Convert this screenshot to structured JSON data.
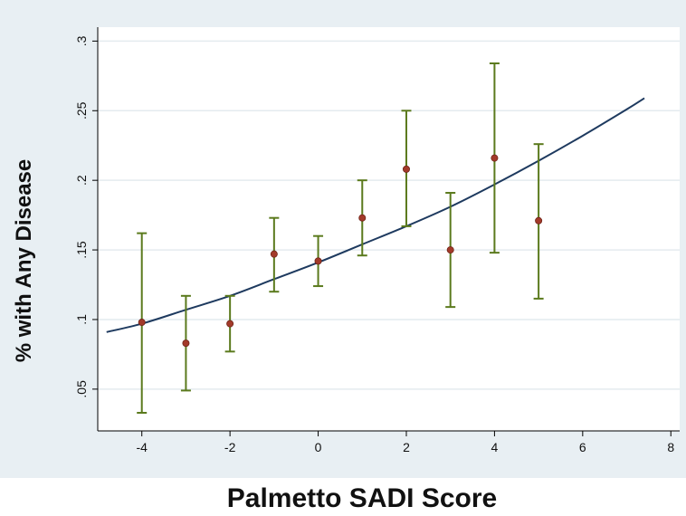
{
  "chart_data": {
    "type": "scatter",
    "xlabel": "Palmetto SADI Score",
    "ylabel": "% with Any Disease",
    "xlim": [
      -5,
      8.2
    ],
    "ylim": [
      0.02,
      0.31
    ],
    "x_ticks": [
      -4,
      -2,
      0,
      2,
      4,
      6,
      8
    ],
    "x_tick_labels": [
      "-4",
      "-2",
      "0",
      "2",
      "4",
      "6",
      "8"
    ],
    "y_ticks": [
      0.05,
      0.1,
      0.15,
      0.2,
      0.25,
      0.3
    ],
    "y_tick_labels": [
      ".05",
      ".1",
      ".15",
      ".2",
      ".25",
      ".3"
    ],
    "grid": true,
    "legend": "none",
    "colors": {
      "plot_background": "#ffffff",
      "outer_background": "#e8eff3",
      "grid": "#e4ebef",
      "point": "#a33a2a",
      "error_bar": "#5b7a1d",
      "fit_line": "#1e3a5f"
    },
    "points": [
      {
        "x": -4,
        "y": 0.098,
        "lower": 0.033,
        "upper": 0.162
      },
      {
        "x": -3,
        "y": 0.083,
        "lower": 0.049,
        "upper": 0.117
      },
      {
        "x": -2,
        "y": 0.097,
        "lower": 0.077,
        "upper": 0.117
      },
      {
        "x": -1,
        "y": 0.147,
        "lower": 0.12,
        "upper": 0.173
      },
      {
        "x": 0,
        "y": 0.142,
        "lower": 0.124,
        "upper": 0.16
      },
      {
        "x": 1,
        "y": 0.173,
        "lower": 0.146,
        "upper": 0.2
      },
      {
        "x": 2,
        "y": 0.208,
        "lower": 0.167,
        "upper": 0.25
      },
      {
        "x": 3,
        "y": 0.15,
        "lower": 0.109,
        "upper": 0.191
      },
      {
        "x": 4,
        "y": 0.216,
        "lower": 0.148,
        "upper": 0.284
      },
      {
        "x": 5,
        "y": 0.171,
        "lower": 0.115,
        "upper": 0.226
      }
    ],
    "fit_curve": {
      "x": [
        -4.8,
        -4,
        -3,
        -2,
        -1,
        0,
        1,
        2,
        3,
        4,
        5,
        6,
        7,
        7.4
      ],
      "y": [
        0.091,
        0.097,
        0.107,
        0.117,
        0.129,
        0.141,
        0.154,
        0.167,
        0.181,
        0.197,
        0.214,
        0.232,
        0.251,
        0.259
      ]
    }
  }
}
